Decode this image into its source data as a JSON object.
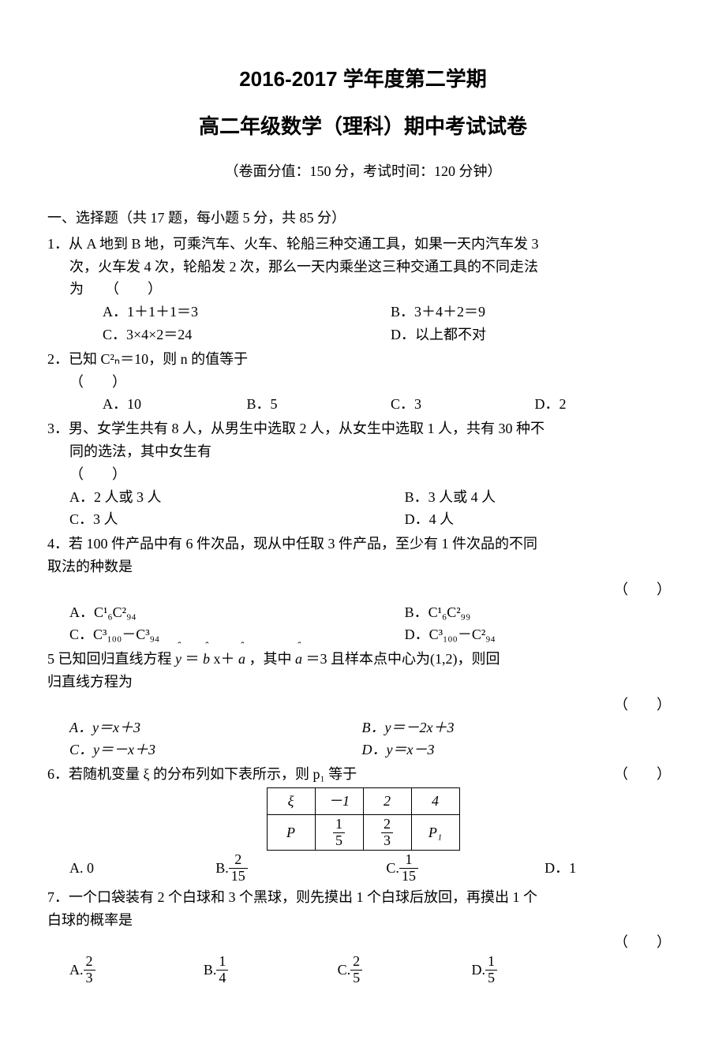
{
  "header": {
    "title1": "2016-2017 学年度第二学期",
    "title2": "高二年级数学（理科）期中考试试卷",
    "subtitle": "（卷面分值：150 分，考试时间：120 分钟）"
  },
  "section1_title": "一、选择题（共 17 题，每小题 5 分，共 85 分）",
  "q1": {
    "stem_l1": "1．从 A 地到 B 地，可乘汽车、火车、轮船三种交通工具，如果一天内汽车发 3",
    "stem_l2": "次，火车发 4 次，轮船发 2 次，那么一天内乘坐这三种交通工具的不同走法",
    "stem_l3": "为　　（　　）",
    "optA": "A．1＋1＋1＝3",
    "optB": "B．3＋4＋2＝9",
    "optC": "C．3×4×2＝24",
    "optD": "D．以上都不对"
  },
  "q2": {
    "stem": "2．已知 C²ₙ＝10，则 n 的值等于",
    "paren": "（　　）",
    "optA": "A．10",
    "optB": "B．5",
    "optC": "C．3",
    "optD": "D．2"
  },
  "q3": {
    "stem_l1": "3．男、女学生共有 8 人，从男生中选取 2 人，从女生中选取 1 人，共有 30 种不",
    "stem_l2": "同的选法，其中女生有",
    "paren": "（　　）",
    "optA": "A．2 人或 3 人",
    "optB": "B．3 人或 4 人",
    "optC": "C．3 人",
    "optD": "D．4 人"
  },
  "q4": {
    "stem_l1": "4．若 100 件产品中有 6 件次品，现从中任取 3 件产品，至少有 1 件次品的不同",
    "stem_l2": "取法的种数是",
    "paren": "（　　）",
    "optA": "A．C¹₆C²₉₄",
    "optB": "B．C¹₆C²₉₉",
    "optC": "C．C³₁₀₀－C³₉₄",
    "optD": "D．C³₁₀₀－C²₉₄"
  },
  "q5": {
    "stem_l1_pre": "5 已知回归直线方程 ",
    "stem_l1_y": "y",
    "stem_l1_eq": " ＝ ",
    "stem_l1_b": "b",
    "stem_l1_mid": " x＋ ",
    "stem_l1_a": "a",
    "stem_l1_post": " ，其中 ",
    "stem_l1_a2": "a",
    "stem_l1_end": " ＝3 且样本点中心为(1,2)，则回",
    "stem_l2": "归直线方程为",
    "paren": "（　　）",
    "optA": "A．y＝x＋3",
    "optB": "B．y＝－2x＋3",
    "optC": "C．y＝－x＋3",
    "optD": "D．y＝x－3"
  },
  "q6": {
    "stem": "6．若随机变量 ξ 的分布列如下表所示，则 p₁ 等于",
    "paren": "（　　）",
    "table": {
      "r1": [
        "ξ",
        "－1",
        "2",
        "4"
      ],
      "r2_label": "P",
      "r2_f1_num": "1",
      "r2_f1_den": "5",
      "r2_f2_num": "2",
      "r2_f2_den": "3",
      "r2_p1": "P₁"
    },
    "optA_label": "A. 0",
    "optB_label": "B.",
    "optB_num": "2",
    "optB_den": "15",
    "optC_label": "C.",
    "optC_num": "1",
    "optC_den": "15",
    "optD_label": "D．1"
  },
  "q7": {
    "stem_l1": "7．一个口袋装有 2 个白球和 3 个黑球，则先摸出 1 个白球后放回，再摸出 1 个",
    "stem_l2": "白球的概率是",
    "paren": "（　　）",
    "optA_label": "A.",
    "optA_num": "2",
    "optA_den": "3",
    "optB_label": "B.",
    "optB_num": "1",
    "optB_den": "4",
    "optC_label": "C.",
    "optC_num": "2",
    "optC_den": "5",
    "optD_label": "D.",
    "optD_num": "1",
    "optD_den": "5"
  }
}
